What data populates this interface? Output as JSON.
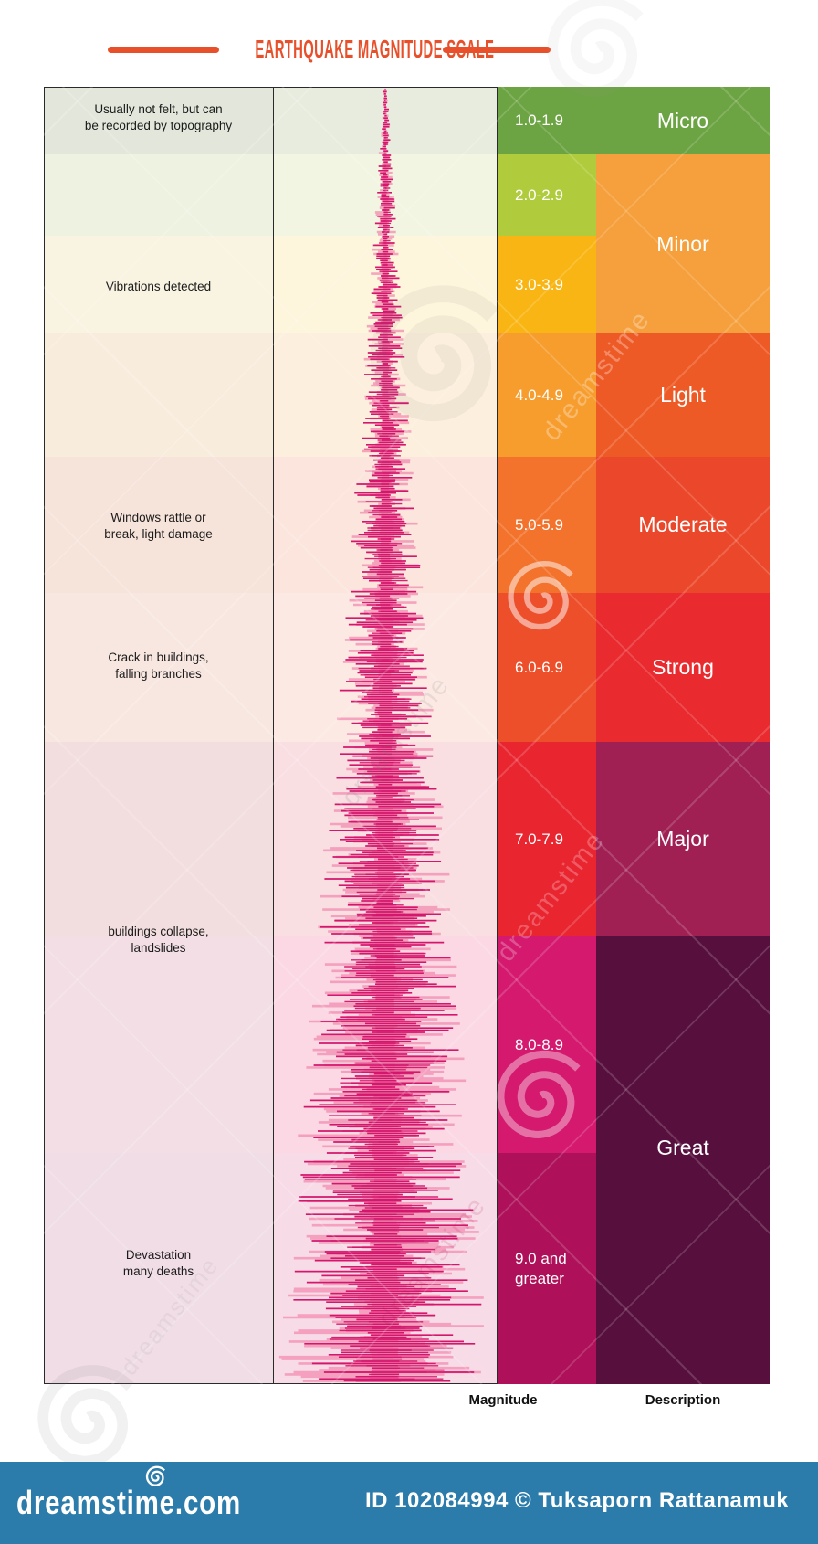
{
  "title": "EARTHQUAKE MAGNITUDE SCALE",
  "scale": {
    "column_labels": {
      "magnitude": "Magnitude",
      "description": "Description"
    },
    "magnitude_rows": [
      {
        "range": "1.0-1.9",
        "color": "#6ca343"
      },
      {
        "range": "2.0-2.9",
        "color": "#b0cb3b"
      },
      {
        "range": "3.0-3.9",
        "color": "#f9b513"
      },
      {
        "range": "4.0-4.9",
        "color": "#f69d2e"
      },
      {
        "range": "5.0-5.9",
        "color": "#f3722c"
      },
      {
        "range": "6.0-6.9",
        "color": "#ee4f2b"
      },
      {
        "range": "7.0-7.9",
        "color": "#e92530"
      },
      {
        "range": "8.0-8.9",
        "color": "#d4196e"
      },
      {
        "range": "9.0 and\ngreater",
        "color": "#ae1159"
      }
    ],
    "descriptions": [
      {
        "label": "Micro",
        "color": "#6ca343"
      },
      {
        "label": "Minor",
        "color": "#f5a03c"
      },
      {
        "label": "Light",
        "color": "#ee5a26"
      },
      {
        "label": "Moderate",
        "color": "#eb472a"
      },
      {
        "label": "Strong",
        "color": "#e92a2e"
      },
      {
        "label": "Major",
        "color": "#a02053"
      },
      {
        "label": "Great",
        "color": "#570f3d"
      }
    ],
    "effects": [
      {
        "text": "Usually not felt, but can\nbe recorded by topography"
      },
      {
        "text": "Vibrations detected"
      },
      {
        "text": "Windows rattle or\nbreak, light damage"
      },
      {
        "text": "Crack in buildings,\nfalling branches"
      },
      {
        "text": "buildings collapse,\nlandslides"
      },
      {
        "text": "Devastation\nmany deaths"
      }
    ]
  },
  "colors": {
    "accent": "#e8502b",
    "waveform_main": "#d4176d",
    "waveform_light": "#f291b4",
    "footer_bg": "#2b7cab"
  },
  "watermark": {
    "brand": "dreamstime"
  },
  "footer": {
    "logo": "dreamstime.com",
    "credit": "ID 102084994 © Tuksaporn Rattanamuk"
  }
}
